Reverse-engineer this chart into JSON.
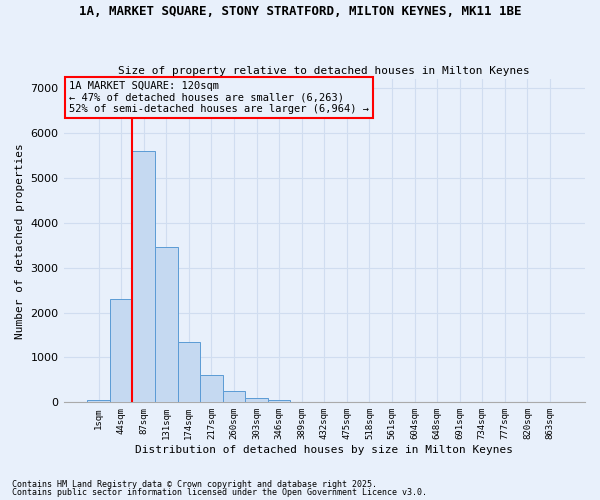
{
  "title1": "1A, MARKET SQUARE, STONY STRATFORD, MILTON KEYNES, MK11 1BE",
  "title2": "Size of property relative to detached houses in Milton Keynes",
  "xlabel": "Distribution of detached houses by size in Milton Keynes",
  "ylabel": "Number of detached properties",
  "footnote1": "Contains HM Land Registry data © Crown copyright and database right 2025.",
  "footnote2": "Contains public sector information licensed under the Open Government Licence v3.0.",
  "bar_labels": [
    "1sqm",
    "44sqm",
    "87sqm",
    "131sqm",
    "174sqm",
    "217sqm",
    "260sqm",
    "303sqm",
    "346sqm",
    "389sqm",
    "432sqm",
    "475sqm",
    "518sqm",
    "561sqm",
    "604sqm",
    "648sqm",
    "691sqm",
    "734sqm",
    "777sqm",
    "820sqm",
    "863sqm"
  ],
  "bar_values": [
    50,
    2300,
    5600,
    3450,
    1350,
    600,
    250,
    100,
    50,
    5,
    2,
    1,
    0,
    0,
    0,
    0,
    0,
    0,
    0,
    0,
    0
  ],
  "bar_color": "#c5d9f1",
  "bar_edge_color": "#5b9bd5",
  "vline_color": "red",
  "vline_x": 1.5,
  "annotation_title": "1A MARKET SQUARE: 120sqm",
  "annotation_line1": "← 47% of detached houses are smaller (6,263)",
  "annotation_line2": "52% of semi-detached houses are larger (6,964) →",
  "annotation_box_color": "red",
  "background_color": "#e8f0fb",
  "grid_color": "#d0ddf0",
  "ylim": [
    0,
    7200
  ],
  "yticks": [
    0,
    1000,
    2000,
    3000,
    4000,
    5000,
    6000,
    7000
  ]
}
